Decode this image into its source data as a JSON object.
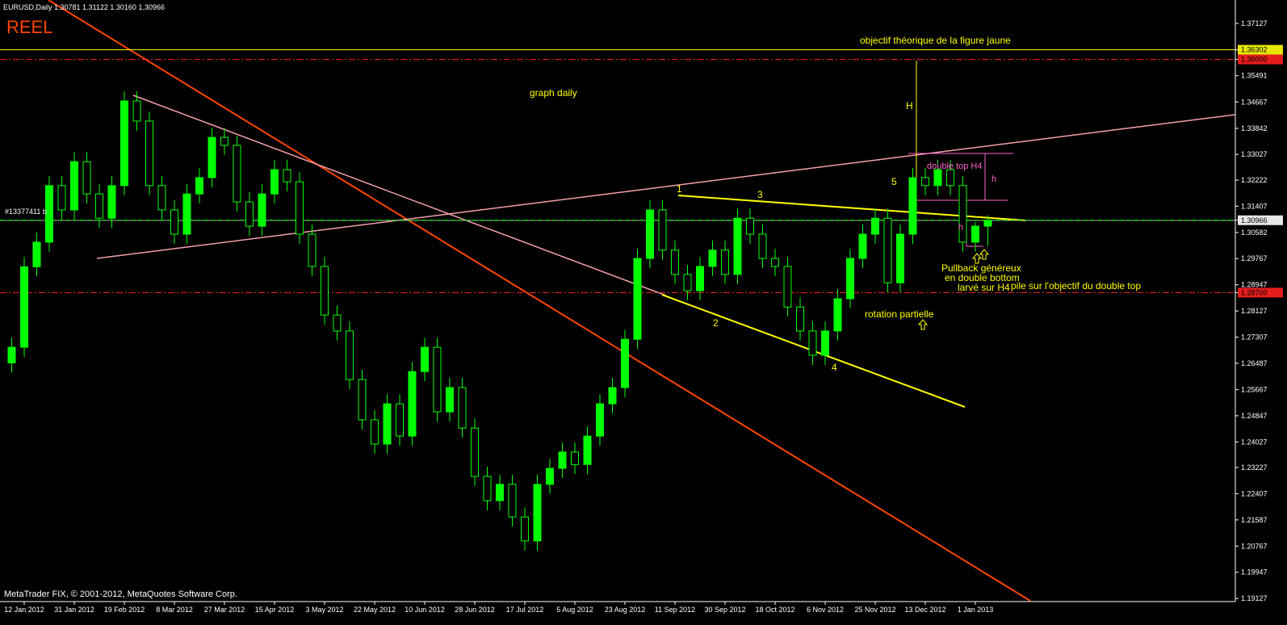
{
  "chart_data": {
    "type": "candlestick",
    "header": "EURUSD,Daily  1.30781 1.31122 1.30160 1.30966",
    "footer": "MetaTrader FIX, © 2001-2012, MetaQuotes Software Corp.",
    "annotations": [
      "REEL",
      "objectif théorique de la figure jaune",
      "graph daily",
      "H",
      "double top H4",
      "h",
      "h",
      "1",
      "2",
      "3",
      "4",
      "5",
      "Pullback généreux",
      "en double bottom",
      "larvé sur H4",
      "pile sur l'objectif du double top",
      "rotation partielle",
      "#13377411 b"
    ],
    "categories": [
      null,
      "12 Jan 2012",
      null,
      null,
      null,
      "31 Jan 2012",
      null,
      null,
      null,
      "19 Feb 2012",
      null,
      null,
      null,
      "8 Mar 2012",
      null,
      null,
      null,
      "27 Mar 2012",
      null,
      null,
      null,
      "15 Apr 2012",
      null,
      null,
      null,
      "3 May 2012",
      null,
      null,
      null,
      "22 May 2012",
      null,
      null,
      null,
      "10 Jun 2012",
      null,
      null,
      null,
      "28 Jun 2012",
      null,
      null,
      null,
      "17 Jul 2012",
      null,
      null,
      null,
      "5 Aug 2012",
      null,
      null,
      null,
      "23 Aug 2012",
      null,
      null,
      null,
      "11 Sep 2012",
      null,
      null,
      null,
      "30 Sep 2012",
      null,
      null,
      null,
      "18 Oct 2012",
      null,
      null,
      null,
      "6 Nov 2012",
      null,
      null,
      null,
      "25 Nov 2012",
      null,
      null,
      null,
      "13 Dec 2012",
      null,
      null,
      null,
      "1 Jan 2013",
      null
    ],
    "open": [
      1.265,
      1.2699,
      1.2951,
      1.3028,
      1.3205,
      1.3129,
      1.328,
      1.3179,
      1.3103,
      1.3205,
      1.347,
      1.3407,
      1.3205,
      1.3129,
      1.3053,
      1.3179,
      1.323,
      1.3356,
      1.3331,
      1.3154,
      1.3078,
      1.3179,
      1.3255,
      1.3217,
      1.3053,
      1.2952,
      1.28,
      1.275,
      1.2598,
      1.2472,
      1.2396,
      1.2522,
      1.2421,
      1.2623,
      1.2699,
      1.2497,
      1.2573,
      1.2446,
      1.2295,
      1.2219,
      1.227,
      1.2168,
      1.2093,
      1.227,
      1.232,
      1.2371,
      1.2332,
      1.2421,
      1.2522,
      1.2573,
      1.2724,
      1.2977,
      1.3129,
      1.3003,
      1.2927,
      1.2876,
      1.2952,
      1.3003,
      1.2927,
      1.3103,
      1.3053,
      1.2977,
      1.2952,
      1.2825,
      1.275,
      1.2674,
      1.275,
      1.2851,
      1.2977,
      1.3053,
      1.3103,
      1.2901,
      1.3053,
      1.323,
      1.3205,
      1.3255,
      1.3205,
      1.3028,
      1.30781
    ],
    "high": [
      1.2729,
      1.2981,
      1.3058,
      1.3235,
      1.3235,
      1.331,
      1.331,
      1.3209,
      1.3235,
      1.35,
      1.35,
      1.3437,
      1.3235,
      1.3159,
      1.3209,
      1.326,
      1.3386,
      1.3386,
      1.3361,
      1.3184,
      1.3209,
      1.3285,
      1.3285,
      1.3247,
      1.3083,
      1.2982,
      1.283,
      1.278,
      1.2628,
      1.2502,
      1.2552,
      1.2552,
      1.2653,
      1.2729,
      1.2729,
      1.2603,
      1.2603,
      1.2476,
      1.2325,
      1.23,
      1.23,
      1.2198,
      1.23,
      1.235,
      1.2401,
      1.2401,
      1.2451,
      1.2552,
      1.2603,
      1.2754,
      1.3007,
      1.3159,
      1.3159,
      1.3033,
      1.2957,
      1.2982,
      1.3033,
      1.3033,
      1.3133,
      1.3133,
      1.3083,
      1.3007,
      1.2982,
      1.2855,
      1.278,
      1.278,
      1.2881,
      1.3007,
      1.3083,
      1.3133,
      1.3133,
      1.3083,
      1.326,
      1.326,
      1.3285,
      1.3285,
      1.3235,
      1.309,
      1.31122
    ],
    "low": [
      1.262,
      1.2669,
      1.2921,
      1.2998,
      1.3099,
      1.3099,
      1.3149,
      1.3073,
      1.3073,
      1.3175,
      1.3377,
      1.3175,
      1.3099,
      1.3023,
      1.3023,
      1.3149,
      1.32,
      1.3301,
      1.3124,
      1.3048,
      1.3048,
      1.3149,
      1.3187,
      1.3023,
      1.2922,
      1.277,
      1.272,
      1.2568,
      1.2442,
      1.2366,
      1.2366,
      1.2391,
      1.2391,
      1.2593,
      1.2467,
      1.2467,
      1.2416,
      1.2265,
      1.2189,
      1.2189,
      1.2138,
      1.2063,
      1.2063,
      1.224,
      1.229,
      1.2302,
      1.2302,
      1.2391,
      1.2492,
      1.2543,
      1.2694,
      1.2947,
      1.2973,
      1.2897,
      1.2846,
      1.2846,
      1.2922,
      1.2897,
      1.2897,
      1.3023,
      1.2947,
      1.2922,
      1.2795,
      1.272,
      1.2644,
      1.2644,
      1.272,
      1.2821,
      1.2947,
      1.3023,
      1.2871,
      1.2871,
      1.3023,
      1.3175,
      1.3175,
      1.3175,
      1.2998,
      1.2998,
      1.3016
    ],
    "close": [
      1.2699,
      1.2951,
      1.3028,
      1.3205,
      1.3129,
      1.328,
      1.3179,
      1.3103,
      1.3205,
      1.347,
      1.3407,
      1.3205,
      1.3129,
      1.3053,
      1.3179,
      1.323,
      1.3356,
      1.3331,
      1.3154,
      1.3078,
      1.3179,
      1.3255,
      1.3217,
      1.3053,
      1.2952,
      1.28,
      1.275,
      1.2598,
      1.2472,
      1.2396,
      1.2522,
      1.2421,
      1.2623,
      1.2699,
      1.2497,
      1.2573,
      1.2446,
      1.2295,
      1.2219,
      1.227,
      1.2168,
      1.2093,
      1.227,
      1.232,
      1.2371,
      1.2332,
      1.2421,
      1.2522,
      1.2573,
      1.2724,
      1.2977,
      1.3129,
      1.3003,
      1.2927,
      1.2876,
      1.2952,
      1.3003,
      1.2927,
      1.3103,
      1.3053,
      1.2977,
      1.2952,
      1.2825,
      1.275,
      1.2674,
      1.275,
      1.2851,
      1.2977,
      1.3053,
      1.3103,
      1.2901,
      1.3053,
      1.323,
      1.3205,
      1.3255,
      1.3205,
      1.3028,
      1.3078,
      1.30966
    ],
    "up_color": "#00ff00",
    "down_color": "#000000",
    "wick_color": "#00ff00",
    "ylim": [
      1.1903,
      1.3786
    ],
    "yticks": [
      1.37127,
      1.36302,
      {
        "value": 1.36,
        "label": "1.36000"
      },
      1.35491,
      1.34667,
      1.33842,
      1.33027,
      1.32222,
      1.31407,
      1.30966,
      1.30582,
      1.29767,
      1.28947,
      {
        "value": 1.287,
        "label": "1.28700"
      },
      1.28127,
      1.27307,
      1.26487,
      1.25667,
      1.24847,
      1.24027,
      1.23227,
      1.22407,
      1.21587,
      1.20767,
      1.19947,
      1.19127
    ],
    "levels": [
      {
        "value": 1.36302,
        "color": "#ffff00",
        "style": "solid"
      },
      {
        "value": 1.36,
        "color": "#ff2020",
        "style": "dashdot"
      },
      {
        "value": 1.30966,
        "color": "#00ff00",
        "style": "dashed"
      },
      {
        "value": 1.287,
        "color": "#ff2020",
        "style": "dashdot"
      }
    ],
    "grid": false
  }
}
